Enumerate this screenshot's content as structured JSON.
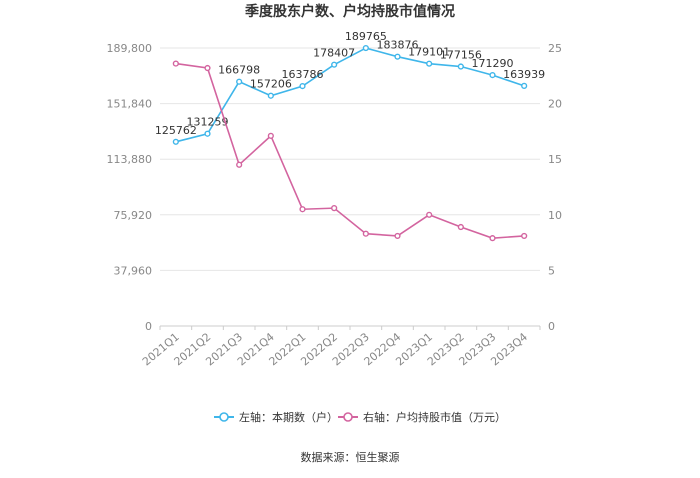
{
  "chart_data": {
    "type": "line",
    "title": "季度股东户数、户均持股市值情况",
    "categories": [
      "2021Q1",
      "2021Q2",
      "2021Q3",
      "2021Q4",
      "2022Q1",
      "2022Q2",
      "2022Q3",
      "2022Q4",
      "2023Q1",
      "2023Q2",
      "2023Q3",
      "2023Q4"
    ],
    "series": [
      {
        "name": "左轴：本期数（户）",
        "axis": "left",
        "color": "#3fb6ea",
        "values": [
          125762,
          131259,
          166798,
          157206,
          163786,
          178407,
          189765,
          183876,
          179101,
          177156,
          171290,
          163939
        ],
        "labels": [
          "125762",
          "131259",
          "166798",
          "157206",
          "163786",
          "178407",
          "189765",
          "183876",
          "179101",
          "177156",
          "171290",
          "163939"
        ]
      },
      {
        "name": "右轴：户均持股市值（万元）",
        "axis": "right",
        "color": "#d3649f",
        "values": [
          23.6,
          23.2,
          14.5,
          17.1,
          10.5,
          10.6,
          8.3,
          8.1,
          10.0,
          8.9,
          7.9,
          8.1
        ]
      }
    ],
    "left_axis": {
      "min": 0,
      "max": 189800,
      "ticks": [
        "0",
        "37,960",
        "75,920",
        "113,880",
        "151,840",
        "189,800"
      ]
    },
    "right_axis": {
      "min": 0,
      "max": 25,
      "ticks": [
        "0",
        "5",
        "10",
        "15",
        "20",
        "25"
      ]
    },
    "grid": true,
    "legend_position": "bottom"
  },
  "source": "数据来源：恒生聚源"
}
